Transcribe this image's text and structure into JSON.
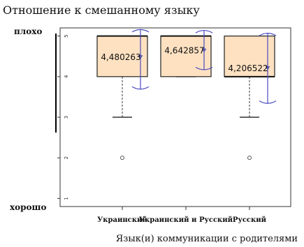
{
  "chart_data": {
    "type": "box",
    "title": "Отношение к смешанному языку",
    "xlabel": "Язык(и) коммуникации с родителями",
    "ylabel": "",
    "top_label": "плохо",
    "bottom_label": "хорошо",
    "ylim": [
      0.8,
      5.2
    ],
    "yticks": [
      1,
      2,
      3,
      4,
      5
    ],
    "categories": [
      "Украинский",
      "Украинский и Русский",
      "Русский"
    ],
    "boxes": [
      {
        "q1": 4.0,
        "median": 5.0,
        "q3": 5.0,
        "whisker_low": 3.0,
        "whisker_high": 5.0,
        "outliers": [
          2.0
        ],
        "mean": 4.480263,
        "mean_label": "4,480263",
        "ci_low": 3.7,
        "ci_high": 5.15
      },
      {
        "q1": 4.0,
        "median": 5.0,
        "q3": 5.0,
        "whisker_low": 4.0,
        "whisker_high": 5.0,
        "outliers": [],
        "mean": 4.642857,
        "mean_label": "4,642857",
        "ci_low": 4.18,
        "ci_high": 5.13
      },
      {
        "q1": 4.0,
        "median": 4.0,
        "q3": 5.0,
        "whisker_low": 3.0,
        "whisker_high": 5.0,
        "outliers": [
          2.0
        ],
        "mean": 4.206522,
        "mean_label": "4,206522",
        "ci_low": 3.35,
        "ci_high": 5.06
      }
    ],
    "grid": false,
    "colors": {
      "box_fill": "#fde1c1",
      "box_stroke": "#222222",
      "mean_marker": "#5a5ab4",
      "ci_bracket": "#4a4ac0"
    }
  }
}
